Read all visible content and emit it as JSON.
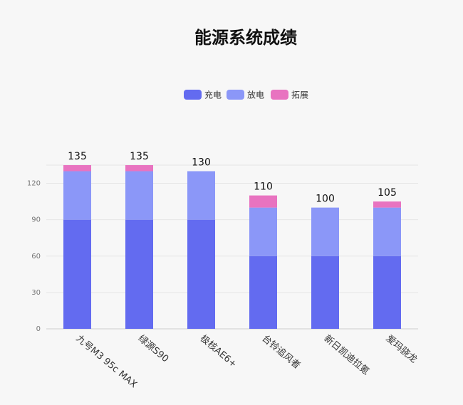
{
  "chart_data": {
    "type": "stacked-bar",
    "title": "能源系统成绩",
    "categories": [
      "九号M3 95c MAX",
      "绿源S90",
      "极核AE6+",
      "台铃追风者",
      "新日凯迪拉氪",
      "爱玛骁龙"
    ],
    "series": [
      {
        "name": "充电",
        "color": "#636bf0",
        "values": [
          90,
          90,
          90,
          60,
          60,
          60
        ]
      },
      {
        "name": "放电",
        "color": "#8b97f8",
        "values": [
          40,
          40,
          40,
          40,
          40,
          40
        ]
      },
      {
        "name": "拓展",
        "color": "#e873c0",
        "values": [
          5,
          5,
          0,
          10,
          0,
          5
        ]
      }
    ],
    "totals": [
      135,
      135,
      130,
      110,
      100,
      105
    ],
    "ylim": [
      0,
      135
    ],
    "yticks": [
      0,
      30,
      60,
      90,
      120
    ],
    "grid": true,
    "legend": "top"
  }
}
